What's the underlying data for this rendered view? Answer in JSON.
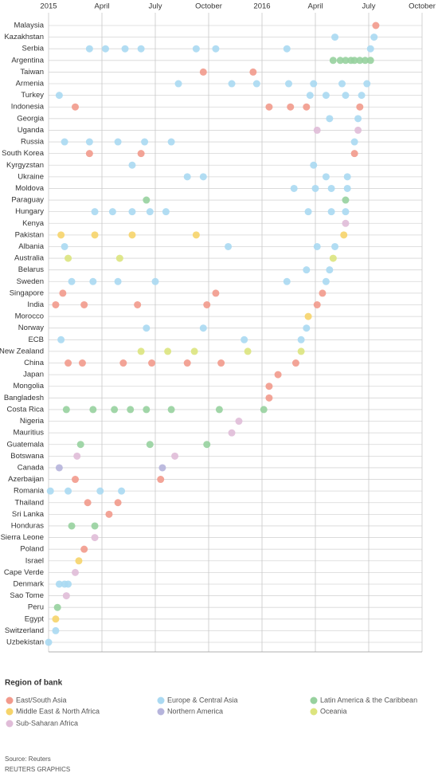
{
  "chart_data": {
    "type": "dot-timeline",
    "categories": [
      "Malaysia",
      "Kazakhstan",
      "Serbia",
      "Argentina",
      "Taiwan",
      "Armenia",
      "Turkey",
      "Indonesia",
      "Georgia",
      "Uganda",
      "Russia",
      "South Korea",
      "Kyrgyzstan",
      "Ukraine",
      "Moldova",
      "Paraguay",
      "Hungary",
      "Kenya",
      "Pakistan",
      "Albania",
      "Australia",
      "Belarus",
      "Sweden",
      "Singapore",
      "India",
      "Morocco",
      "Norway",
      "ECB",
      "New Zealand",
      "China",
      "Japan",
      "Mongolia",
      "Bangladesh",
      "Costa Rica",
      "Nigeria",
      "Mauritius",
      "Guatemala",
      "Botswana",
      "Canada",
      "Azerbaijan",
      "Romania",
      "Thailand",
      "Sri Lanka",
      "Honduras",
      "Sierra Leone",
      "Poland",
      "Israel",
      "Cape Verde",
      "Denmark",
      "Sao Tome",
      "Peru",
      "Egypt",
      "Switzerland",
      "Uzbekistan"
    ],
    "xlim": [
      0,
      21
    ],
    "xticks": [
      {
        "value": 0,
        "label": "2015"
      },
      {
        "value": 3,
        "label": "April"
      },
      {
        "value": 6,
        "label": "July"
      },
      {
        "value": 9,
        "label": "October"
      },
      {
        "value": 12,
        "label": "2016"
      },
      {
        "value": 15,
        "label": "April"
      },
      {
        "value": 18,
        "label": "July"
      },
      {
        "value": 21,
        "label": "October"
      }
    ],
    "grid": true,
    "legend_title": "Region of bank",
    "source": "Source: Reuters",
    "credit": "REUTERS GRAPHICS",
    "series": [
      {
        "name": "East/South Asia",
        "color": "#f29a8c",
        "x": [
          18.4,
          8.7,
          11.5,
          1.5,
          12.4,
          13.6,
          14.5,
          17.5,
          2.3,
          5.2,
          17.2,
          0.8,
          9.4,
          15.4,
          0.4,
          2.0,
          5.0,
          8.9,
          15.1,
          1.1,
          1.9,
          4.2,
          5.8,
          7.8,
          9.7,
          13.9,
          12.9,
          12.4,
          12.4,
          1.5,
          6.3,
          2.2,
          3.9,
          3.4,
          2.0
        ],
        "y": [
          "Malaysia",
          "Taiwan",
          "Taiwan",
          "Indonesia",
          "Indonesia",
          "Indonesia",
          "Indonesia",
          "Indonesia",
          "South Korea",
          "South Korea",
          "South Korea",
          "Singapore",
          "Singapore",
          "Singapore",
          "India",
          "India",
          "India",
          "India",
          "India",
          "China",
          "China",
          "China",
          "China",
          "China",
          "China",
          "China",
          "Japan",
          "Mongolia",
          "Bangladesh",
          "Azerbaijan",
          "Azerbaijan",
          "Thailand",
          "Thailand",
          "Sri Lanka",
          "Poland"
        ]
      },
      {
        "name": "Europe & Central Asia",
        "color": "#aad9f2",
        "x": [
          16.1,
          18.3,
          2.3,
          3.2,
          4.3,
          5.2,
          8.3,
          9.4,
          13.4,
          18.1,
          7.3,
          10.3,
          11.7,
          13.5,
          14.9,
          16.5,
          17.9,
          0.6,
          14.7,
          15.6,
          16.7,
          17.6,
          15.8,
          17.4,
          0.9,
          2.3,
          3.9,
          5.4,
          6.9,
          17.2,
          4.7,
          14.9,
          7.8,
          8.7,
          15.6,
          16.8,
          13.8,
          15.0,
          15.9,
          16.8,
          2.6,
          3.6,
          4.7,
          5.7,
          6.6,
          14.6,
          15.9,
          16.7,
          0.9,
          10.1,
          15.1,
          16.1,
          14.5,
          15.8,
          1.3,
          2.5,
          3.9,
          6.0,
          13.4,
          15.6,
          5.5,
          8.7,
          14.5,
          0.7,
          11.0,
          14.2,
          0.1,
          1.1,
          2.9,
          4.1,
          0.6,
          0.9,
          1.1,
          0.4,
          0
        ],
        "y": [
          "Kazakhstan",
          "Kazakhstan",
          "Serbia",
          "Serbia",
          "Serbia",
          "Serbia",
          "Serbia",
          "Serbia",
          "Serbia",
          "Serbia",
          "Armenia",
          "Armenia",
          "Armenia",
          "Armenia",
          "Armenia",
          "Armenia",
          "Armenia",
          "Turkey",
          "Turkey",
          "Turkey",
          "Turkey",
          "Turkey",
          "Georgia",
          "Georgia",
          "Russia",
          "Russia",
          "Russia",
          "Russia",
          "Russia",
          "Russia",
          "Kyrgyzstan",
          "Kyrgyzstan",
          "Ukraine",
          "Ukraine",
          "Ukraine",
          "Ukraine",
          "Moldova",
          "Moldova",
          "Moldova",
          "Moldova",
          "Hungary",
          "Hungary",
          "Hungary",
          "Hungary",
          "Hungary",
          "Hungary",
          "Hungary",
          "Hungary",
          "Albania",
          "Albania",
          "Albania",
          "Albania",
          "Belarus",
          "Belarus",
          "Sweden",
          "Sweden",
          "Sweden",
          "Sweden",
          "Sweden",
          "Sweden",
          "Norway",
          "Norway",
          "Norway",
          "ECB",
          "ECB",
          "ECB",
          "Romania",
          "Romania",
          "Romania",
          "Romania",
          "Denmark",
          "Denmark",
          "Denmark",
          "Switzerland",
          "Uzbekistan"
        ]
      },
      {
        "name": "Latin America & the Caribbean",
        "color": "#97d19e",
        "x": [
          16.0,
          16.4,
          16.7,
          17.0,
          17.2,
          17.5,
          17.8,
          18.1,
          5.5,
          16.7,
          1.0,
          2.5,
          3.7,
          4.6,
          5.5,
          6.9,
          9.6,
          12.1,
          1.8,
          5.7,
          8.9,
          1.3,
          2.6,
          0.5
        ],
        "y": [
          "Argentina",
          "Argentina",
          "Argentina",
          "Argentina",
          "Argentina",
          "Argentina",
          "Argentina",
          "Argentina",
          "Paraguay",
          "Paraguay",
          "Costa Rica",
          "Costa Rica",
          "Costa Rica",
          "Costa Rica",
          "Costa Rica",
          "Costa Rica",
          "Costa Rica",
          "Costa Rica",
          "Guatemala",
          "Guatemala",
          "Guatemala",
          "Honduras",
          "Honduras",
          "Peru"
        ]
      },
      {
        "name": "Middle East & North Africa",
        "color": "#f6d46a",
        "x": [
          0.7,
          2.6,
          4.7,
          8.3,
          16.6,
          14.6,
          1.7,
          0.4
        ],
        "y": [
          "Pakistan",
          "Pakistan",
          "Pakistan",
          "Pakistan",
          "Pakistan",
          "Morocco",
          "Israel",
          "Egypt"
        ]
      },
      {
        "name": "Northern America",
        "color": "#b6b4dc",
        "x": [
          0.6,
          6.4
        ],
        "y": [
          "Canada",
          "Canada"
        ]
      },
      {
        "name": "Oceania",
        "color": "#dce47e",
        "x": [
          1.1,
          4.0,
          16.0,
          5.2,
          6.7,
          8.2,
          11.2,
          14.2
        ],
        "y": [
          "Australia",
          "Australia",
          "Australia",
          "New Zealand",
          "New Zealand",
          "New Zealand",
          "New Zealand",
          "New Zealand"
        ]
      },
      {
        "name": "Sub-Saharan Africa",
        "color": "#e0bcd8",
        "x": [
          15.1,
          17.4,
          16.7,
          10.7,
          10.3,
          1.6,
          7.1,
          2.6,
          1.5,
          1.0
        ],
        "y": [
          "Uganda",
          "Uganda",
          "Kenya",
          "Nigeria",
          "Mauritius",
          "Botswana",
          "Botswana",
          "Sierra Leone",
          "Cape Verde",
          "Sao Tome"
        ]
      }
    ]
  }
}
